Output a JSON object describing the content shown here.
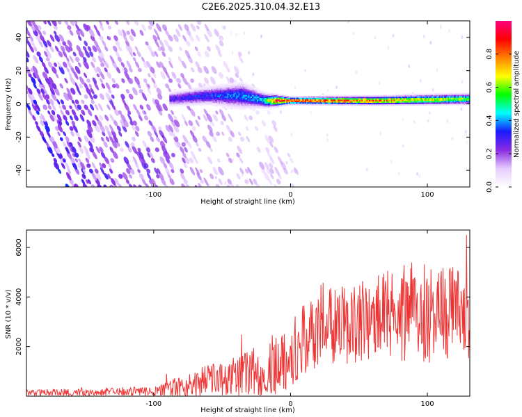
{
  "title": "C2E6.2025.310.04.32.E13",
  "chart_data": [
    {
      "type": "heatmap",
      "name": "spectrogram",
      "xlabel": "Height of straight line (km)",
      "ylabel": "Frequency (Hz)",
      "xlim": [
        -193,
        131
      ],
      "ylim": [
        -50,
        50
      ],
      "xticks": [
        -100,
        0,
        100
      ],
      "yticks": [
        -40,
        -20,
        0,
        20,
        40
      ],
      "colorbar": {
        "label": "Normalized spectral amplitude",
        "range": [
          0,
          1
        ],
        "ticks": [
          0.0,
          0.2,
          0.4,
          0.6,
          0.8
        ],
        "colors": [
          "#ffffff",
          "#e6ccff",
          "#8a2be2",
          "#1a1aff",
          "#00ffff",
          "#00ff00",
          "#ffff00",
          "#ff8000",
          "#ff0000",
          "#ff0080"
        ]
      },
      "stripes": {
        "count": 46,
        "x_start": -193,
        "x_end": -18,
        "slope_km_per_hz": -0.6,
        "amplitude_range": [
          0.1,
          0.35
        ]
      },
      "signal_band": {
        "x_start": -88,
        "x_end": 131,
        "center_freq": [
          {
            "x": -88,
            "f": 3
          },
          {
            "x": -60,
            "f": 5
          },
          {
            "x": -35,
            "f": 5
          },
          {
            "x": -18,
            "f": 2
          },
          {
            "x": 0,
            "f": 2
          },
          {
            "x": 60,
            "f": 2
          },
          {
            "x": 131,
            "f": 3
          }
        ],
        "half_width": [
          {
            "x": -88,
            "w": 4
          },
          {
            "x": -60,
            "w": 5
          },
          {
            "x": -35,
            "w": 7
          },
          {
            "x": -18,
            "w": 4
          },
          {
            "x": 0,
            "w": 2
          },
          {
            "x": 131,
            "w": 3
          }
        ],
        "peak_amplitude": [
          {
            "x": -88,
            "a": 0.3
          },
          {
            "x": -20,
            "a": 0.45
          },
          {
            "x": -10,
            "a": 0.95
          },
          {
            "x": 60,
            "a": 0.85
          },
          {
            "x": 131,
            "a": 0.6
          }
        ]
      }
    },
    {
      "type": "line",
      "name": "snr",
      "xlabel": "Height of straight line (km)",
      "ylabel": "SNR (10 * v/v)",
      "xlim": [
        -193,
        131
      ],
      "ylim": [
        0,
        6700
      ],
      "xticks": [
        -100,
        0,
        100
      ],
      "yticks": [
        2000,
        4000,
        6000
      ],
      "series": [
        {
          "name": "SNR",
          "color": "#ee3333",
          "mean_profile": [
            {
              "x": -193,
              "y": 150
            },
            {
              "x": -100,
              "y": 180
            },
            {
              "x": -85,
              "y": 300
            },
            {
              "x": -60,
              "y": 650
            },
            {
              "x": -30,
              "y": 900
            },
            {
              "x": -10,
              "y": 1300
            },
            {
              "x": 0,
              "y": 1700
            },
            {
              "x": 20,
              "y": 2700
            },
            {
              "x": 50,
              "y": 3000
            },
            {
              "x": 80,
              "y": 3300
            },
            {
              "x": 110,
              "y": 3400
            },
            {
              "x": 131,
              "y": 3300
            }
          ],
          "noise_amplitude": [
            {
              "x": -193,
              "y": 120
            },
            {
              "x": -100,
              "y": 180
            },
            {
              "x": -85,
              "y": 450
            },
            {
              "x": -50,
              "y": 700
            },
            {
              "x": -20,
              "y": 1100
            },
            {
              "x": 0,
              "y": 1500
            },
            {
              "x": 40,
              "y": 1600
            },
            {
              "x": 80,
              "y": 2000
            },
            {
              "x": 131,
              "y": 2100
            }
          ],
          "sample_step_km": 0.4,
          "ymax_observed": 6700
        }
      ]
    }
  ]
}
